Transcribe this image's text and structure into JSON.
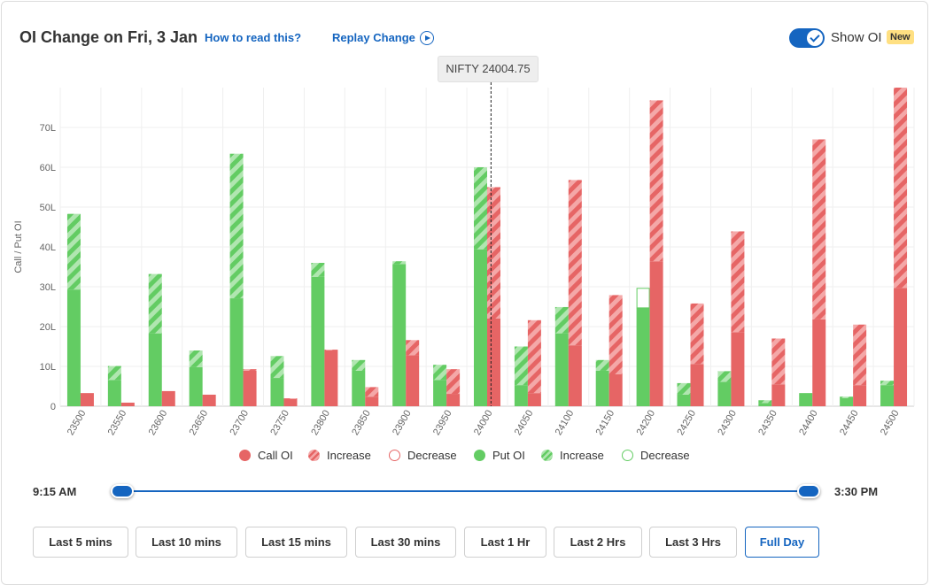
{
  "header": {
    "title": "OI Change on Fri, 3 Jan",
    "how_to_read": "How to read this?",
    "replay": "Replay Change",
    "show_oi_label": "Show OI",
    "new_badge": "New",
    "show_oi_enabled": true
  },
  "spot": {
    "label": "NIFTY 24004.75",
    "value": 24004.75
  },
  "legend": {
    "call_oi": "Call OI",
    "call_increase": "Increase",
    "call_decrease": "Decrease",
    "put_oi": "Put OI",
    "put_increase": "Increase",
    "put_decrease": "Decrease"
  },
  "colors": {
    "call": "#e66565",
    "call_increase": "#f4a8a8",
    "put": "#63cc63",
    "put_increase": "#b0e6b0",
    "accent": "#1565c0"
  },
  "time_range": {
    "start": "9:15 AM",
    "end": "3:30 PM"
  },
  "buttons": [
    "Last 5 mins",
    "Last 10 mins",
    "Last 15 mins",
    "Last 30 mins",
    "Last 1 Hr",
    "Last 2 Hrs",
    "Last 3 Hrs",
    "Full Day"
  ],
  "active_button": "Full Day",
  "chart_data": {
    "type": "bar",
    "ylabel": "Call / Put OI",
    "ylim": [
      0,
      80
    ],
    "yticks": [
      0,
      10,
      20,
      30,
      40,
      50,
      60,
      70
    ],
    "ytick_labels": [
      "0",
      "10L",
      "20L",
      "30L",
      "40L",
      "50L",
      "60L",
      "70L"
    ],
    "grid": true,
    "categories": [
      "23500",
      "23550",
      "23600",
      "23650",
      "23700",
      "23750",
      "23800",
      "23850",
      "23900",
      "23950",
      "24000",
      "24050",
      "24100",
      "24150",
      "24200",
      "24250",
      "24300",
      "24350",
      "24400",
      "24450",
      "24500"
    ],
    "series": [
      {
        "name": "Put OI",
        "values": [
          29.3,
          6.6,
          18.3,
          9.8,
          27.1,
          7.1,
          32.5,
          8.9,
          35.7,
          6.6,
          39.4,
          5.3,
          18.3,
          8.9,
          24.7,
          2.9,
          6.1,
          0.8,
          3.3,
          2.0,
          5.3
        ]
      },
      {
        "name": "Increase",
        "values": [
          19.0,
          3.5,
          14.9,
          4.2,
          36.3,
          5.5,
          3.5,
          2.7,
          0.7,
          3.8,
          20.6,
          9.7,
          6.6,
          2.7,
          0,
          2.9,
          2.7,
          0.7,
          0,
          0.4,
          1.1
        ]
      },
      {
        "name": "Decrease",
        "values": [
          0,
          0,
          0,
          0,
          0,
          0,
          0,
          0,
          0,
          0,
          0,
          0,
          0,
          0,
          4.9,
          0,
          0,
          0,
          0,
          0,
          0
        ]
      },
      {
        "name": "Call OI",
        "values": [
          3.3,
          0.9,
          3.8,
          2.9,
          8.9,
          1.8,
          14.0,
          2.4,
          12.8,
          3.1,
          22.0,
          3.3,
          15.3,
          8.0,
          36.4,
          10.6,
          18.6,
          5.5,
          21.8,
          5.3,
          29.7
        ]
      },
      {
        "name": "Increase",
        "values": [
          0,
          0,
          0,
          0,
          0.4,
          0.2,
          0.2,
          2.4,
          3.8,
          6.2,
          33.0,
          18.3,
          41.5,
          19.9,
          40.4,
          15.2,
          25.3,
          11.5,
          45.2,
          15.2,
          50.3
        ]
      },
      {
        "name": "Decrease",
        "values": [
          0,
          0,
          0,
          0,
          0,
          0,
          0,
          0,
          0,
          0,
          0,
          0,
          0,
          0,
          0,
          0,
          0,
          0,
          0,
          0,
          0
        ]
      }
    ]
  }
}
